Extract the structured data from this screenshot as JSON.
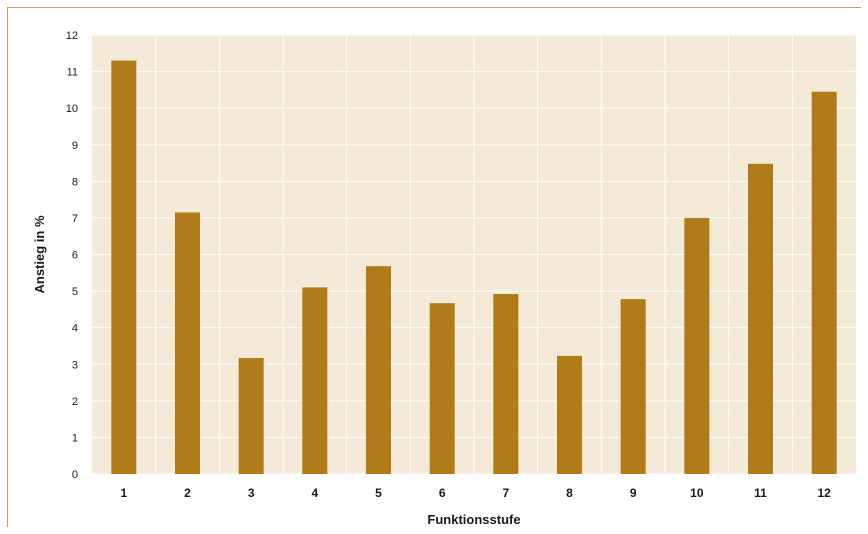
{
  "chart_data": {
    "type": "bar",
    "xlabel": "Funktionsstufe",
    "ylabel": "Anstieg in %",
    "categories": [
      "1",
      "2",
      "3",
      "4",
      "5",
      "6",
      "7",
      "8",
      "9",
      "10",
      "11",
      "12"
    ],
    "values": [
      11.3,
      7.15,
      3.17,
      5.1,
      5.68,
      4.67,
      4.92,
      3.23,
      4.78,
      7.0,
      8.48,
      10.45
    ],
    "ylim": [
      0,
      12
    ],
    "yticks": [
      "0",
      "1",
      "2",
      "3",
      "4",
      "5",
      "6",
      "7",
      "8",
      "9",
      "10",
      "11",
      "12"
    ],
    "grid": true,
    "legend": "none",
    "colors": {
      "bar": "#b07c1a",
      "plot_background": "#f5e9d8",
      "gridline": "#ffffff",
      "frame": "#c9a25a"
    }
  }
}
